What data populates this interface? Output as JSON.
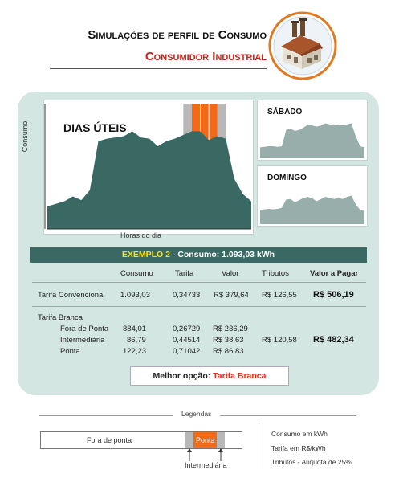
{
  "header": {
    "title": "Simulações de perfil de Consumo",
    "subtitle": "Consumidor Industrial",
    "icon": "factory-icon"
  },
  "chart": {
    "ylabel": "Consumo",
    "xlabel": "Horas do dia",
    "main_label": "DIAS ÚTEIS",
    "saturday_label": "SÁBADO",
    "sunday_label": "DOMINGO"
  },
  "chart_data": [
    {
      "type": "area",
      "title": "DIAS ÚTEIS",
      "xlabel": "Horas do dia",
      "ylabel": "Consumo",
      "x": [
        0,
        1,
        2,
        3,
        4,
        5,
        6,
        7,
        8,
        9,
        10,
        11,
        12,
        13,
        14,
        15,
        16,
        17,
        18,
        19,
        20,
        21,
        22,
        23,
        24
      ],
      "values": [
        18,
        20,
        22,
        26,
        23,
        31,
        70,
        72,
        73,
        74,
        78,
        73,
        72,
        66,
        70,
        72,
        75,
        78,
        78,
        71,
        74,
        72,
        40,
        28,
        22
      ],
      "ponta_hours": [
        17,
        20
      ],
      "intermediaria_hours": [
        [
          16,
          17
        ],
        [
          20,
          21
        ]
      ]
    },
    {
      "type": "area",
      "title": "SÁBADO",
      "x": [
        0,
        1,
        2,
        3,
        4,
        5,
        6,
        7,
        8,
        9,
        10,
        11,
        12,
        13,
        14,
        15,
        16,
        17,
        18,
        19,
        20,
        21,
        22,
        23,
        24
      ],
      "values": [
        20,
        21,
        22,
        22,
        21,
        22,
        52,
        54,
        50,
        52,
        56,
        62,
        60,
        58,
        60,
        64,
        62,
        60,
        62,
        60,
        62,
        64,
        40,
        22,
        20
      ]
    },
    {
      "type": "area",
      "title": "DOMINGO",
      "x": [
        0,
        1,
        2,
        3,
        4,
        5,
        6,
        7,
        8,
        9,
        10,
        11,
        12,
        13,
        14,
        15,
        16,
        17,
        18,
        19,
        20,
        21,
        22,
        23,
        24
      ],
      "values": [
        26,
        27,
        28,
        27,
        28,
        30,
        45,
        46,
        40,
        44,
        48,
        50,
        47,
        42,
        46,
        50,
        48,
        46,
        48,
        46,
        50,
        52,
        36,
        26,
        24
      ]
    }
  ],
  "banner": {
    "example": "EXEMPLO 2",
    "rest": " - Consumo: 1.093,03 kWh"
  },
  "table": {
    "headers": [
      "Consumo",
      "Tarifa",
      "Valor",
      "Tributos",
      "Valor a Pagar"
    ],
    "convencional": {
      "label": "Tarifa Convencional",
      "consumo": "1.093,03",
      "tarifa": "0,34733",
      "valor": "R$ 379,64",
      "tributos": "R$ 126,55",
      "pagar": "R$ 506,19"
    },
    "branca": {
      "label": "Tarifa Branca",
      "rows": [
        {
          "label": "Fora de Ponta",
          "consumo": "884,01",
          "tarifa": "0,26729",
          "valor": "R$ 236,29"
        },
        {
          "label": "Intermediária",
          "consumo": "86,79",
          "tarifa": "0,44514",
          "valor": "R$ 38,63"
        },
        {
          "label": "Ponta",
          "consumo": "122,23",
          "tarifa": "0,71042",
          "valor": "R$ 86,83"
        }
      ],
      "tributos": "R$ 120,58",
      "pagar": "R$ 482,34"
    }
  },
  "best": {
    "label": "Melhor opção: ",
    "value": "Tarifa Branca"
  },
  "legend": {
    "title": "Legendas",
    "fora": "Fora de ponta",
    "ponta": "Ponta",
    "intermediaria": "Intermediária",
    "notes": [
      "Consumo em kWh",
      "Tarifa  em R$/kWh",
      "Tributos - Alíquota de 25%"
    ]
  },
  "colors": {
    "area": "#3a6862",
    "area_light": "#98aeaa",
    "ponta": "#f26a18",
    "intermediaria": "#b8b8b8",
    "accent_red": "#c8221b",
    "panel": "#d3e6e1"
  }
}
